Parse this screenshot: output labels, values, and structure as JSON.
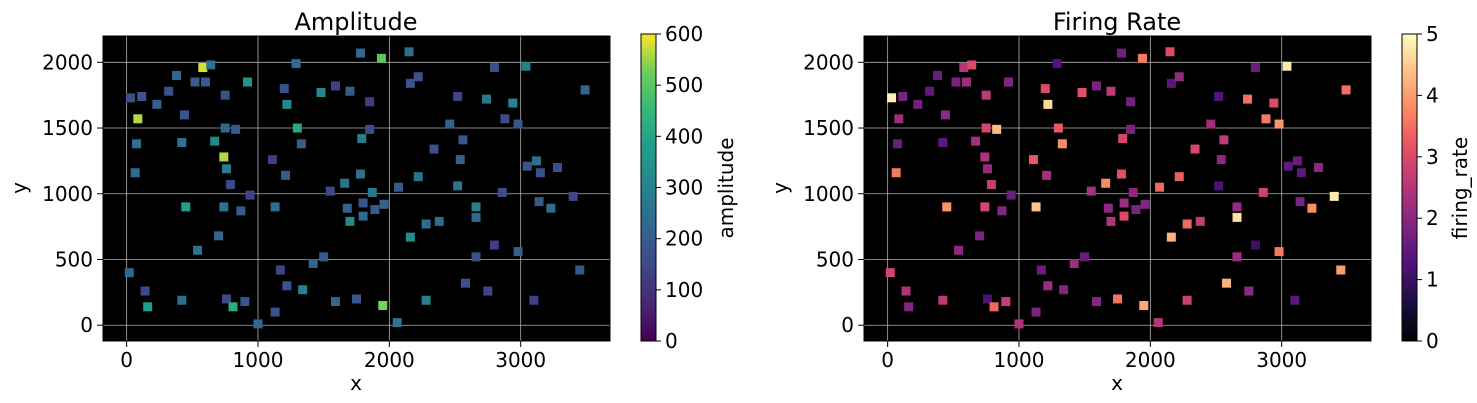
{
  "chart_data": [
    {
      "type": "heatmap",
      "title": "Amplitude",
      "xlabel": "x",
      "ylabel": "y",
      "xlim": [
        -180,
        3680
      ],
      "ylim": [
        -120,
        2200
      ],
      "xticks": [
        0,
        1000,
        2000,
        3000
      ],
      "yticks": [
        0,
        500,
        1000,
        1500,
        2000
      ],
      "grid": true,
      "background": "#000000",
      "colormap": "viridis",
      "colorbar": {
        "label": "amplitude",
        "range": [
          0,
          600
        ],
        "ticks": [
          0,
          100,
          200,
          300,
          400,
          500,
          600
        ]
      },
      "points": [
        {
          "x": 30,
          "y": 1730,
          "v": 160
        },
        {
          "x": 115,
          "y": 1740,
          "v": 180
        },
        {
          "x": 85,
          "y": 1570,
          "v": 560
        },
        {
          "x": 75,
          "y": 1380,
          "v": 250
        },
        {
          "x": 65,
          "y": 1160,
          "v": 230
        },
        {
          "x": 20,
          "y": 400,
          "v": 220
        },
        {
          "x": 140,
          "y": 260,
          "v": 150
        },
        {
          "x": 160,
          "y": 140,
          "v": 380
        },
        {
          "x": 230,
          "y": 1680,
          "v": 210
        },
        {
          "x": 320,
          "y": 1780,
          "v": 170
        },
        {
          "x": 380,
          "y": 1900,
          "v": 220
        },
        {
          "x": 440,
          "y": 1600,
          "v": 180
        },
        {
          "x": 420,
          "y": 1390,
          "v": 260
        },
        {
          "x": 450,
          "y": 900,
          "v": 380
        },
        {
          "x": 420,
          "y": 190,
          "v": 240
        },
        {
          "x": 520,
          "y": 1850,
          "v": 200
        },
        {
          "x": 580,
          "y": 1960,
          "v": 580
        },
        {
          "x": 640,
          "y": 1980,
          "v": 260
        },
        {
          "x": 600,
          "y": 1850,
          "v": 190
        },
        {
          "x": 670,
          "y": 1400,
          "v": 320
        },
        {
          "x": 700,
          "y": 680,
          "v": 220
        },
        {
          "x": 540,
          "y": 570,
          "v": 260
        },
        {
          "x": 750,
          "y": 1750,
          "v": 170
        },
        {
          "x": 750,
          "y": 1500,
          "v": 220
        },
        {
          "x": 740,
          "y": 1280,
          "v": 560
        },
        {
          "x": 760,
          "y": 1190,
          "v": 280
        },
        {
          "x": 790,
          "y": 1070,
          "v": 150
        },
        {
          "x": 740,
          "y": 900,
          "v": 260
        },
        {
          "x": 760,
          "y": 200,
          "v": 150
        },
        {
          "x": 810,
          "y": 140,
          "v": 420
        },
        {
          "x": 830,
          "y": 1490,
          "v": 190
        },
        {
          "x": 870,
          "y": 870,
          "v": 190
        },
        {
          "x": 900,
          "y": 180,
          "v": 180
        },
        {
          "x": 920,
          "y": 1850,
          "v": 350
        },
        {
          "x": 940,
          "y": 990,
          "v": 140
        },
        {
          "x": 1000,
          "y": 10,
          "v": 220
        },
        {
          "x": 1110,
          "y": 1260,
          "v": 120
        },
        {
          "x": 1130,
          "y": 900,
          "v": 240
        },
        {
          "x": 1130,
          "y": 100,
          "v": 170
        },
        {
          "x": 1170,
          "y": 420,
          "v": 140
        },
        {
          "x": 1200,
          "y": 1800,
          "v": 170
        },
        {
          "x": 1220,
          "y": 1680,
          "v": 320
        },
        {
          "x": 1210,
          "y": 1140,
          "v": 200
        },
        {
          "x": 1220,
          "y": 300,
          "v": 170
        },
        {
          "x": 1290,
          "y": 1990,
          "v": 230
        },
        {
          "x": 1300,
          "y": 1500,
          "v": 400
        },
        {
          "x": 1330,
          "y": 1380,
          "v": 200
        },
        {
          "x": 1340,
          "y": 270,
          "v": 300
        },
        {
          "x": 1420,
          "y": 470,
          "v": 220
        },
        {
          "x": 1480,
          "y": 1770,
          "v": 320
        },
        {
          "x": 1500,
          "y": 520,
          "v": 190
        },
        {
          "x": 1550,
          "y": 1020,
          "v": 150
        },
        {
          "x": 1590,
          "y": 1820,
          "v": 130
        },
        {
          "x": 1590,
          "y": 180,
          "v": 220
        },
        {
          "x": 1660,
          "y": 1080,
          "v": 260
        },
        {
          "x": 1680,
          "y": 890,
          "v": 210
        },
        {
          "x": 1700,
          "y": 1780,
          "v": 200
        },
        {
          "x": 1700,
          "y": 790,
          "v": 320
        },
        {
          "x": 1750,
          "y": 200,
          "v": 180
        },
        {
          "x": 1780,
          "y": 2070,
          "v": 230
        },
        {
          "x": 1780,
          "y": 1150,
          "v": 250
        },
        {
          "x": 1790,
          "y": 1420,
          "v": 280
        },
        {
          "x": 1800,
          "y": 830,
          "v": 230
        },
        {
          "x": 1800,
          "y": 930,
          "v": 180
        },
        {
          "x": 1850,
          "y": 1700,
          "v": 120
        },
        {
          "x": 1850,
          "y": 1490,
          "v": 160
        },
        {
          "x": 1870,
          "y": 1010,
          "v": 270
        },
        {
          "x": 1890,
          "y": 880,
          "v": 190
        },
        {
          "x": 1940,
          "y": 2030,
          "v": 500
        },
        {
          "x": 1950,
          "y": 150,
          "v": 530
        },
        {
          "x": 1960,
          "y": 920,
          "v": 210
        },
        {
          "x": 2060,
          "y": 20,
          "v": 260
        },
        {
          "x": 2070,
          "y": 1050,
          "v": 190
        },
        {
          "x": 2150,
          "y": 2080,
          "v": 240
        },
        {
          "x": 2160,
          "y": 1840,
          "v": 180
        },
        {
          "x": 2220,
          "y": 1890,
          "v": 170
        },
        {
          "x": 2160,
          "y": 670,
          "v": 330
        },
        {
          "x": 2220,
          "y": 1130,
          "v": 260
        },
        {
          "x": 2280,
          "y": 770,
          "v": 240
        },
        {
          "x": 2280,
          "y": 190,
          "v": 290
        },
        {
          "x": 2340,
          "y": 1340,
          "v": 170
        },
        {
          "x": 2380,
          "y": 790,
          "v": 230
        },
        {
          "x": 2460,
          "y": 1530,
          "v": 210
        },
        {
          "x": 2520,
          "y": 1740,
          "v": 140
        },
        {
          "x": 2520,
          "y": 1060,
          "v": 260
        },
        {
          "x": 2540,
          "y": 1260,
          "v": 200
        },
        {
          "x": 2560,
          "y": 1410,
          "v": 180
        },
        {
          "x": 2580,
          "y": 320,
          "v": 170
        },
        {
          "x": 2660,
          "y": 900,
          "v": 290
        },
        {
          "x": 2660,
          "y": 820,
          "v": 230
        },
        {
          "x": 2660,
          "y": 520,
          "v": 170
        },
        {
          "x": 2740,
          "y": 1720,
          "v": 270
        },
        {
          "x": 2750,
          "y": 260,
          "v": 140
        },
        {
          "x": 2800,
          "y": 1960,
          "v": 160
        },
        {
          "x": 2800,
          "y": 610,
          "v": 120
        },
        {
          "x": 2860,
          "y": 1010,
          "v": 160
        },
        {
          "x": 2880,
          "y": 1570,
          "v": 150
        },
        {
          "x": 2940,
          "y": 1690,
          "v": 300
        },
        {
          "x": 2980,
          "y": 1530,
          "v": 180
        },
        {
          "x": 2980,
          "y": 560,
          "v": 200
        },
        {
          "x": 3040,
          "y": 1970,
          "v": 300
        },
        {
          "x": 3050,
          "y": 1210,
          "v": 180
        },
        {
          "x": 3100,
          "y": 190,
          "v": 130
        },
        {
          "x": 3120,
          "y": 1250,
          "v": 250
        },
        {
          "x": 3150,
          "y": 1160,
          "v": 170
        },
        {
          "x": 3140,
          "y": 940,
          "v": 190
        },
        {
          "x": 3230,
          "y": 890,
          "v": 240
        },
        {
          "x": 3280,
          "y": 1200,
          "v": 160
        },
        {
          "x": 3400,
          "y": 980,
          "v": 140
        },
        {
          "x": 3450,
          "y": 420,
          "v": 190
        },
        {
          "x": 3490,
          "y": 1790,
          "v": 220
        }
      ]
    },
    {
      "type": "heatmap",
      "title": "Firing Rate",
      "xlabel": "x",
      "ylabel": "y",
      "xlim": [
        -180,
        3680
      ],
      "ylim": [
        -120,
        2200
      ],
      "xticks": [
        0,
        1000,
        2000,
        3000
      ],
      "yticks": [
        0,
        500,
        1000,
        1500,
        2000
      ],
      "grid": true,
      "background": "#000000",
      "colormap": "magma",
      "colorbar": {
        "label": "firing_rate",
        "range": [
          0,
          5
        ],
        "ticks": [
          0,
          1,
          2,
          3,
          4,
          5
        ]
      },
      "points": [
        {
          "x": 30,
          "y": 1730,
          "v": 4.9
        },
        {
          "x": 115,
          "y": 1740,
          "v": 1.8
        },
        {
          "x": 85,
          "y": 1570,
          "v": 2.2
        },
        {
          "x": 75,
          "y": 1380,
          "v": 1.6
        },
        {
          "x": 65,
          "y": 1160,
          "v": 3.6
        },
        {
          "x": 20,
          "y": 400,
          "v": 2.9
        },
        {
          "x": 140,
          "y": 260,
          "v": 2.4
        },
        {
          "x": 160,
          "y": 140,
          "v": 1.9
        },
        {
          "x": 230,
          "y": 1680,
          "v": 1.7
        },
        {
          "x": 320,
          "y": 1780,
          "v": 1.5
        },
        {
          "x": 380,
          "y": 1900,
          "v": 1.6
        },
        {
          "x": 440,
          "y": 1600,
          "v": 2.0
        },
        {
          "x": 420,
          "y": 1390,
          "v": 1.4
        },
        {
          "x": 450,
          "y": 900,
          "v": 3.9
        },
        {
          "x": 420,
          "y": 190,
          "v": 2.6
        },
        {
          "x": 520,
          "y": 1850,
          "v": 1.8
        },
        {
          "x": 580,
          "y": 1960,
          "v": 2.5
        },
        {
          "x": 640,
          "y": 1980,
          "v": 3.0
        },
        {
          "x": 600,
          "y": 1850,
          "v": 2.2
        },
        {
          "x": 670,
          "y": 1400,
          "v": 2.3
        },
        {
          "x": 700,
          "y": 680,
          "v": 1.8
        },
        {
          "x": 540,
          "y": 570,
          "v": 2.0
        },
        {
          "x": 750,
          "y": 1750,
          "v": 2.6
        },
        {
          "x": 750,
          "y": 1500,
          "v": 2.9
        },
        {
          "x": 740,
          "y": 1280,
          "v": 2.4
        },
        {
          "x": 760,
          "y": 1190,
          "v": 2.1
        },
        {
          "x": 790,
          "y": 1070,
          "v": 2.7
        },
        {
          "x": 740,
          "y": 900,
          "v": 2.9
        },
        {
          "x": 760,
          "y": 200,
          "v": 1.2
        },
        {
          "x": 810,
          "y": 140,
          "v": 3.4
        },
        {
          "x": 830,
          "y": 1490,
          "v": 4.3
        },
        {
          "x": 870,
          "y": 870,
          "v": 1.9
        },
        {
          "x": 900,
          "y": 180,
          "v": 2.7
        },
        {
          "x": 920,
          "y": 1850,
          "v": 1.9
        },
        {
          "x": 940,
          "y": 990,
          "v": 1.6
        },
        {
          "x": 1000,
          "y": 10,
          "v": 2.4
        },
        {
          "x": 1110,
          "y": 1260,
          "v": 3.2
        },
        {
          "x": 1130,
          "y": 900,
          "v": 4.4
        },
        {
          "x": 1130,
          "y": 100,
          "v": 1.8
        },
        {
          "x": 1170,
          "y": 420,
          "v": 1.6
        },
        {
          "x": 1200,
          "y": 1800,
          "v": 3.0
        },
        {
          "x": 1220,
          "y": 1680,
          "v": 4.6
        },
        {
          "x": 1210,
          "y": 1140,
          "v": 2.3
        },
        {
          "x": 1220,
          "y": 300,
          "v": 2.2
        },
        {
          "x": 1290,
          "y": 1990,
          "v": 1.3
        },
        {
          "x": 1300,
          "y": 1500,
          "v": 3.2
        },
        {
          "x": 1330,
          "y": 1380,
          "v": 3.8
        },
        {
          "x": 1340,
          "y": 270,
          "v": 1.9
        },
        {
          "x": 1420,
          "y": 470,
          "v": 2.2
        },
        {
          "x": 1480,
          "y": 1770,
          "v": 3.1
        },
        {
          "x": 1500,
          "y": 520,
          "v": 1.6
        },
        {
          "x": 1550,
          "y": 1020,
          "v": 2.3
        },
        {
          "x": 1590,
          "y": 1820,
          "v": 1.8
        },
        {
          "x": 1590,
          "y": 180,
          "v": 1.9
        },
        {
          "x": 1660,
          "y": 1080,
          "v": 3.8
        },
        {
          "x": 1680,
          "y": 890,
          "v": 2.0
        },
        {
          "x": 1700,
          "y": 1780,
          "v": 2.6
        },
        {
          "x": 1700,
          "y": 790,
          "v": 2.4
        },
        {
          "x": 1750,
          "y": 200,
          "v": 3.5
        },
        {
          "x": 1780,
          "y": 2070,
          "v": 1.7
        },
        {
          "x": 1780,
          "y": 1150,
          "v": 3.1
        },
        {
          "x": 1790,
          "y": 1420,
          "v": 2.9
        },
        {
          "x": 1800,
          "y": 830,
          "v": 3.0
        },
        {
          "x": 1800,
          "y": 930,
          "v": 2.2
        },
        {
          "x": 1850,
          "y": 1700,
          "v": 1.7
        },
        {
          "x": 1850,
          "y": 1490,
          "v": 1.8
        },
        {
          "x": 1870,
          "y": 1010,
          "v": 2.0
        },
        {
          "x": 1890,
          "y": 880,
          "v": 1.8
        },
        {
          "x": 1940,
          "y": 2030,
          "v": 3.6
        },
        {
          "x": 1950,
          "y": 150,
          "v": 4.1
        },
        {
          "x": 1960,
          "y": 920,
          "v": 1.9
        },
        {
          "x": 2060,
          "y": 20,
          "v": 2.5
        },
        {
          "x": 2070,
          "y": 1050,
          "v": 3.4
        },
        {
          "x": 2150,
          "y": 2080,
          "v": 3.0
        },
        {
          "x": 2160,
          "y": 1840,
          "v": 1.4
        },
        {
          "x": 2220,
          "y": 1890,
          "v": 2.1
        },
        {
          "x": 2160,
          "y": 670,
          "v": 4.2
        },
        {
          "x": 2220,
          "y": 1130,
          "v": 3.3
        },
        {
          "x": 2280,
          "y": 770,
          "v": 3.4
        },
        {
          "x": 2280,
          "y": 190,
          "v": 2.8
        },
        {
          "x": 2340,
          "y": 1340,
          "v": 2.9
        },
        {
          "x": 2380,
          "y": 790,
          "v": 2.7
        },
        {
          "x": 2460,
          "y": 1530,
          "v": 2.2
        },
        {
          "x": 2520,
          "y": 1740,
          "v": 1.3
        },
        {
          "x": 2520,
          "y": 1060,
          "v": 1.2
        },
        {
          "x": 2540,
          "y": 1260,
          "v": 2.0
        },
        {
          "x": 2560,
          "y": 1410,
          "v": 2.6
        },
        {
          "x": 2580,
          "y": 320,
          "v": 4.2
        },
        {
          "x": 2660,
          "y": 900,
          "v": 2.1
        },
        {
          "x": 2660,
          "y": 820,
          "v": 4.7
        },
        {
          "x": 2660,
          "y": 520,
          "v": 2.2
        },
        {
          "x": 2740,
          "y": 1720,
          "v": 3.5
        },
        {
          "x": 2750,
          "y": 260,
          "v": 2.0
        },
        {
          "x": 2800,
          "y": 1960,
          "v": 1.6
        },
        {
          "x": 2800,
          "y": 610,
          "v": 1.0
        },
        {
          "x": 2860,
          "y": 1010,
          "v": 2.8
        },
        {
          "x": 2880,
          "y": 1570,
          "v": 3.6
        },
        {
          "x": 2940,
          "y": 1690,
          "v": 3.0
        },
        {
          "x": 2980,
          "y": 1530,
          "v": 3.9
        },
        {
          "x": 2980,
          "y": 560,
          "v": 3.6
        },
        {
          "x": 3040,
          "y": 1970,
          "v": 4.8
        },
        {
          "x": 3050,
          "y": 1210,
          "v": 1.5
        },
        {
          "x": 3100,
          "y": 190,
          "v": 1.4
        },
        {
          "x": 3120,
          "y": 1250,
          "v": 1.6
        },
        {
          "x": 3150,
          "y": 1160,
          "v": 1.4
        },
        {
          "x": 3140,
          "y": 940,
          "v": 1.8
        },
        {
          "x": 3230,
          "y": 890,
          "v": 3.8
        },
        {
          "x": 3280,
          "y": 1200,
          "v": 2.0
        },
        {
          "x": 3400,
          "y": 980,
          "v": 4.8
        },
        {
          "x": 3450,
          "y": 420,
          "v": 4.0
        },
        {
          "x": 3490,
          "y": 1790,
          "v": 3.5
        }
      ]
    }
  ]
}
